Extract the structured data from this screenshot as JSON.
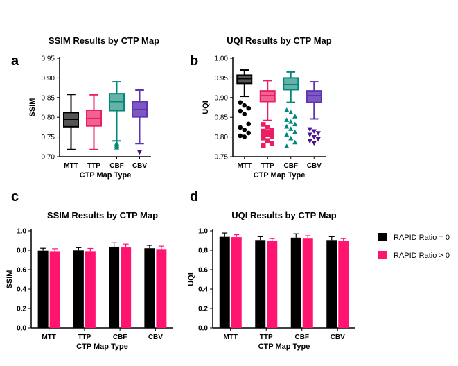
{
  "chart_data": [
    {
      "panel": "a",
      "type": "box",
      "title": "SSIM Results by CTP Map",
      "xlabel": "CTP Map Type",
      "ylabel": "SSIM",
      "ylim": [
        0.7,
        0.95
      ],
      "yticks": [
        "0.70",
        "0.75",
        "0.80",
        "0.85",
        "0.90",
        "0.95"
      ],
      "categories": [
        "MTT",
        "TTP",
        "CBF",
        "CBV"
      ],
      "colors": [
        "#555555",
        "#f06292",
        "#66b2a8",
        "#7e57c2"
      ],
      "edge_colors": [
        "#000000",
        "#e91e63",
        "#00897b",
        "#5e35b1"
      ],
      "marker_colors": [
        "#000000",
        "#e91e63",
        "#00897b",
        "#4a148c"
      ],
      "markers": [
        "circle",
        "square",
        "triangle-up",
        "triangle-down"
      ],
      "boxes": [
        {
          "min": 0.718,
          "q1": 0.776,
          "median": 0.795,
          "q3": 0.812,
          "max": 0.858,
          "outliers": []
        },
        {
          "min": 0.718,
          "q1": 0.778,
          "median": 0.797,
          "q3": 0.818,
          "max": 0.857,
          "outliers": []
        },
        {
          "min": 0.74,
          "q1": 0.817,
          "median": 0.84,
          "q3": 0.86,
          "max": 0.89,
          "outliers": [
            0.733,
            0.728,
            0.723
          ]
        },
        {
          "min": 0.733,
          "q1": 0.801,
          "median": 0.82,
          "q3": 0.84,
          "max": 0.869,
          "outliers": [
            0.712
          ]
        }
      ]
    },
    {
      "panel": "b",
      "type": "box",
      "title": "UQI Results by CTP Map",
      "xlabel": "CTP Map Type",
      "ylabel": "UQI",
      "ylim": [
        0.75,
        1.0
      ],
      "yticks": [
        "0.75",
        "0.80",
        "0.85",
        "0.90",
        "0.95",
        "1.00"
      ],
      "categories": [
        "MTT",
        "TTP",
        "CBF",
        "CBV"
      ],
      "colors": [
        "#555555",
        "#f06292",
        "#66b2a8",
        "#7e57c2"
      ],
      "edge_colors": [
        "#000000",
        "#e91e63",
        "#00897b",
        "#5e35b1"
      ],
      "marker_colors": [
        "#000000",
        "#e91e63",
        "#00897b",
        "#4a148c"
      ],
      "markers": [
        "circle",
        "square",
        "triangle-up",
        "triangle-down"
      ],
      "boxes": [
        {
          "min": 0.903,
          "q1": 0.936,
          "median": 0.948,
          "q3": 0.957,
          "max": 0.97,
          "outliers": [
            0.888,
            0.88,
            0.873,
            0.866,
            0.858,
            0.833,
            0.824,
            0.818,
            0.81,
            0.803,
            0.8
          ]
        },
        {
          "min": 0.842,
          "q1": 0.89,
          "median": 0.905,
          "q3": 0.917,
          "max": 0.943,
          "outliers": [
            0.832,
            0.825,
            0.818,
            0.815,
            0.812,
            0.81,
            0.808,
            0.806,
            0.8,
            0.797,
            0.791,
            0.784,
            0.778
          ]
        },
        {
          "min": 0.888,
          "q1": 0.92,
          "median": 0.933,
          "q3": 0.95,
          "max": 0.965,
          "outliers": [
            0.868,
            0.862,
            0.852,
            0.843,
            0.838,
            0.832,
            0.826,
            0.82,
            0.812,
            0.805,
            0.796,
            0.786,
            0.776
          ]
        },
        {
          "min": 0.846,
          "q1": 0.888,
          "median": 0.905,
          "q3": 0.917,
          "max": 0.94,
          "outliers": [
            0.82,
            0.815,
            0.81,
            0.806,
            0.8,
            0.795,
            0.79,
            0.785
          ]
        }
      ]
    },
    {
      "panel": "c",
      "type": "bar",
      "title": "SSIM Results by CTP Map",
      "xlabel": "CTP Map Type",
      "ylabel": "SSIM",
      "ylim": [
        0.0,
        1.0
      ],
      "yticks": [
        "0.0",
        "0.2",
        "0.4",
        "0.6",
        "0.8",
        "1.0"
      ],
      "categories": [
        "MTT",
        "TTP",
        "CBF",
        "CBV"
      ],
      "series": [
        {
          "name": "RAPID Ratio = 0",
          "color": "#000000",
          "values": [
            0.795,
            0.798,
            0.836,
            0.82
          ],
          "errors": [
            0.025,
            0.028,
            0.04,
            0.03
          ]
        },
        {
          "name": "RAPID Ratio > 0",
          "color": "#ff1470",
          "values": [
            0.79,
            0.79,
            0.828,
            0.812
          ],
          "errors": [
            0.025,
            0.028,
            0.035,
            0.03
          ]
        }
      ]
    },
    {
      "panel": "d",
      "type": "bar",
      "title": "UQI Results by CTP Map",
      "xlabel": "CTP Map Type",
      "ylabel": "UQI",
      "ylim": [
        0.0,
        1.0
      ],
      "yticks": [
        "0.0",
        "0.2",
        "0.4",
        "0.6",
        "0.8",
        "1.0"
      ],
      "categories": [
        "MTT",
        "TTP",
        "CBF",
        "CBV"
      ],
      "series": [
        {
          "name": "RAPID Ratio = 0",
          "color": "#000000",
          "values": [
            0.938,
            0.905,
            0.93,
            0.905
          ],
          "errors": [
            0.04,
            0.035,
            0.04,
            0.035
          ]
        },
        {
          "name": "RAPID Ratio > 0",
          "color": "#ff1470",
          "values": [
            0.935,
            0.895,
            0.92,
            0.895
          ],
          "errors": [
            0.025,
            0.025,
            0.03,
            0.025
          ]
        }
      ]
    }
  ]
}
